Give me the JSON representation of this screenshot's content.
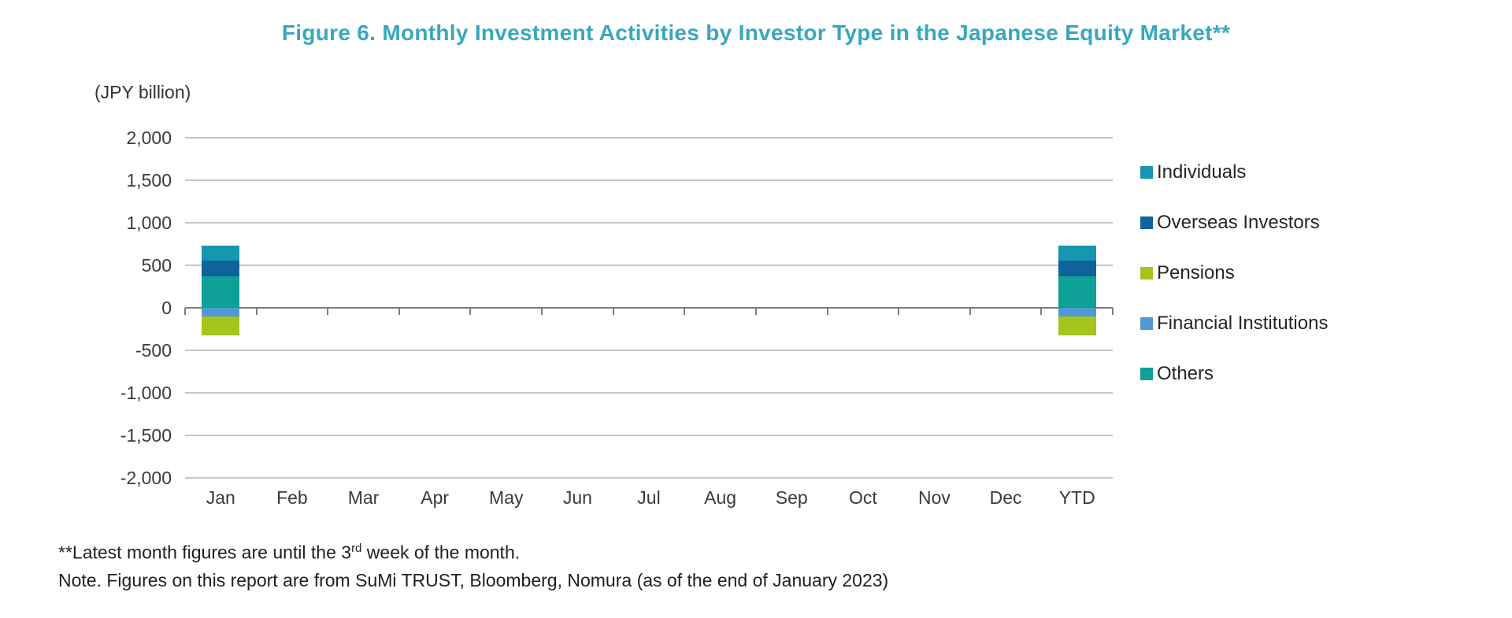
{
  "figure": {
    "title": "Figure 6. Monthly Investment Activities by Investor Type in the Japanese Equity Market**",
    "unit_label": "(JPY billion)"
  },
  "footnotes": {
    "note1_text": "**Latest month figures are until the 3",
    "note1_superscript": "rd",
    "note1_rest": " week of the month.",
    "note2": "Note. Figures on this report are from SuMi TRUST, Bloomberg, Nomura (as of the end of January 2023)"
  },
  "colors": {
    "title": "#39a7be",
    "gridline": "#c6c6c6",
    "zero_line": "#7e7e7e",
    "axis_text": "#3a3a3a",
    "footnote_text": "#1f1f1f"
  },
  "chart_data": {
    "type": "bar",
    "stacked": true,
    "title": "Figure 6. Monthly Investment Activities by Investor Type in the Japanese Equity Market**",
    "unit": "JPY billion",
    "categories": [
      "Jan",
      "Feb",
      "Mar",
      "Apr",
      "May",
      "Jun",
      "Jul",
      "Aug",
      "Sep",
      "Oct",
      "Nov",
      "Dec",
      "YTD"
    ],
    "series": [
      {
        "name": "Individuals",
        "color": "#1796b2",
        "values": [
          170,
          0,
          0,
          0,
          0,
          0,
          0,
          0,
          0,
          0,
          0,
          0,
          170
        ]
      },
      {
        "name": "Overseas Investors",
        "color": "#0e639b",
        "values": [
          190,
          0,
          0,
          0,
          0,
          0,
          0,
          0,
          0,
          0,
          0,
          0,
          190
        ]
      },
      {
        "name": "Pensions",
        "color": "#a5c41c",
        "values": [
          -220,
          0,
          0,
          0,
          0,
          0,
          0,
          0,
          0,
          0,
          0,
          0,
          -220
        ]
      },
      {
        "name": "Financial Institutions",
        "color": "#4f9ad4",
        "values": [
          -100,
          0,
          0,
          0,
          0,
          0,
          0,
          0,
          0,
          0,
          0,
          0,
          -100
        ]
      },
      {
        "name": "Others",
        "color": "#0fa098",
        "values": [
          370,
          0,
          0,
          0,
          0,
          0,
          0,
          0,
          0,
          0,
          0,
          0,
          370
        ]
      }
    ],
    "ylim": [
      -2000,
      2000
    ],
    "ytick_step": 500,
    "ytick_labels": [
      "2,000",
      "1,500",
      "1,000",
      "500",
      "0",
      "-500",
      "-1,000",
      "-1,500",
      "-2,000"
    ],
    "grid": true,
    "legend_position": "right",
    "xlabel": "",
    "ylabel": "(JPY billion)"
  }
}
